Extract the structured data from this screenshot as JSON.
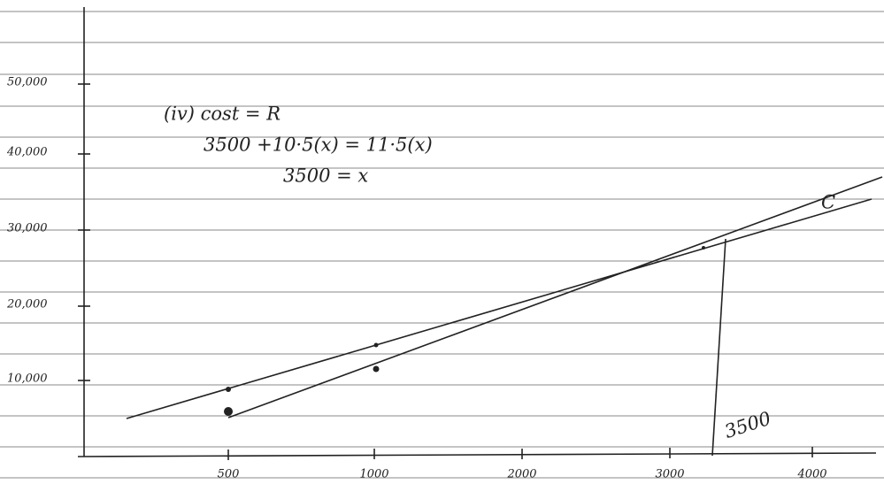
{
  "y_axis": {
    "labels": [
      "50,000",
      "40,000",
      "30,000",
      "20,000",
      "10,000"
    ]
  },
  "x_axis": {
    "labels": [
      "500",
      "1000",
      "2000",
      "3000",
      "4000"
    ]
  },
  "annotations": {
    "heading": "(iv) cost = R",
    "equation": "3500 +10·5(x) = 11·5(x)",
    "result": "3500 = x",
    "marker_label": "3500",
    "line_label": "C"
  }
}
